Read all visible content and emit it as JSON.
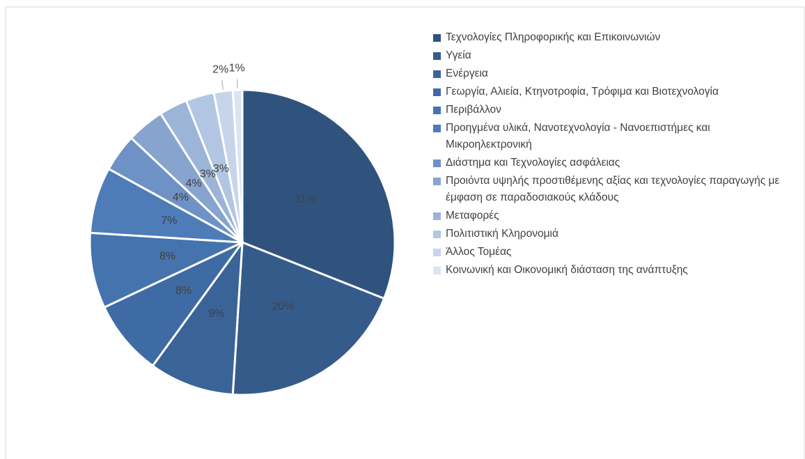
{
  "chart_data": {
    "type": "pie",
    "categories": [
      "Τεχνολογίες Πληροφορικής και Επικοινωνιών",
      "Υγεία",
      "Ενέργεια",
      "Γεωργία, Αλιεία, Κτηνοτροφία, Τρόφιμα και Βιοτεχνολογία",
      "Περιβάλλον",
      "Προηγμένα υλικά, Νανοτεχνολογία - Νανοεπιστήμες και Μικροηλεκτρονική",
      "Διάστημα και Τεχνολογίες ασφάλειας",
      "Προιόντα υψηλής προστιθέμενης αξίας και τεχνολογίες παραγωγής με έμφαση σε παραδοσιακούς κλάδους",
      "Μεταφορές",
      "Πολιτιστική Κληρονομιά",
      "Άλλος Τομέας",
      "Κοινωνική και Οικονομική διάσταση της ανάπτυξης"
    ],
    "values": [
      31,
      20,
      9,
      8,
      8,
      7,
      4,
      4,
      3,
      3,
      2,
      1
    ],
    "value_labels": [
      "31%",
      "20%",
      "9%",
      "8%",
      "8%",
      "7%",
      "4%",
      "4%",
      "3%",
      "3%",
      "2%",
      "1%"
    ],
    "colors": [
      "#30537e",
      "#355b8b",
      "#3a6398",
      "#3f6ba4",
      "#4573ae",
      "#4d7cb9",
      "#6e92c5",
      "#87a4cf",
      "#9cb4d8",
      "#b2c5e2",
      "#c7d5ea",
      "#dae4f2"
    ],
    "legend": "right"
  }
}
